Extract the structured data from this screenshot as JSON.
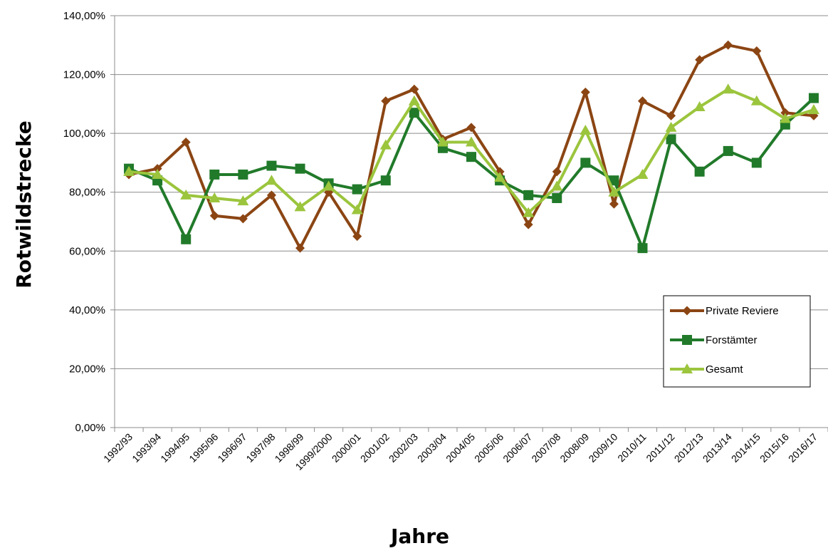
{
  "chart_data": {
    "type": "line",
    "xlabel": "Jahre",
    "ylabel": "Rotwildstrecke",
    "ylim": [
      0,
      140
    ],
    "yticks": [
      "0,00%",
      "20,00%",
      "40,00%",
      "60,00%",
      "80,00%",
      "100,00%",
      "120,00%",
      "140,00%"
    ],
    "grid": true,
    "legend_position": "bottom-right",
    "categories": [
      "1992/93",
      "1993/94",
      "1994/95",
      "1995/96",
      "1996/97",
      "1997/98",
      "1998/99",
      "1999/2000",
      "2000/01",
      "2001/02",
      "2002/03",
      "2003/04",
      "2004/05",
      "2005/06",
      "2006/07",
      "2007/08",
      "2008/09",
      "2009/10",
      "2010/11",
      "2011/12",
      "2012/13",
      "2013/14",
      "2014/15",
      "2015/16",
      "2016/17"
    ],
    "series": [
      {
        "name": "Private Reviere",
        "color": "#8B4513",
        "marker": "diamond",
        "values": [
          86,
          88,
          97,
          72,
          71,
          79,
          61,
          80,
          65,
          111,
          115,
          98,
          102,
          87,
          69,
          87,
          114,
          76,
          111,
          106,
          125,
          130,
          128,
          107,
          106
        ]
      },
      {
        "name": "Forstämter",
        "color": "#217A2A",
        "marker": "square",
        "values": [
          88,
          84,
          64,
          86,
          86,
          89,
          88,
          83,
          81,
          84,
          107,
          95,
          92,
          84,
          79,
          78,
          90,
          84,
          61,
          98,
          87,
          94,
          90,
          103,
          112
        ]
      },
      {
        "name": "Gesamt",
        "color": "#9BC53D",
        "marker": "triangle",
        "values": [
          87,
          86,
          79,
          78,
          77,
          84,
          75,
          82,
          74,
          96,
          111,
          97,
          97,
          85,
          73,
          82,
          101,
          80,
          86,
          102,
          109,
          115,
          111,
          105,
          108
        ]
      }
    ]
  }
}
